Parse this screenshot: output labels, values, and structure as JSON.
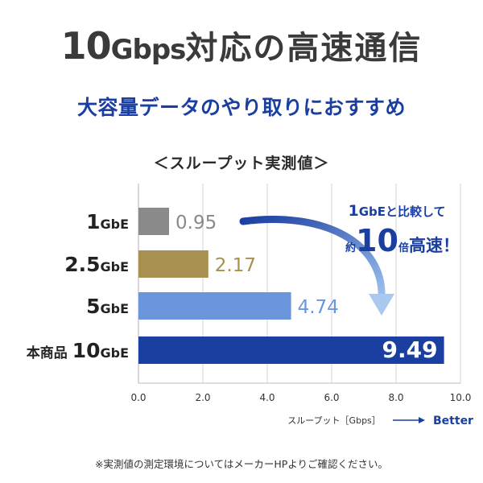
{
  "headline": {
    "num": "10",
    "unit": "Gbps",
    "text": "対応の高速通信"
  },
  "subtitle": "大容量データのやり取りにおすすめ",
  "chart_data": {
    "type": "bar",
    "orientation": "horizontal",
    "title": "＜スループット実測値＞",
    "categories": [
      {
        "prefix": "",
        "num": "1",
        "unit": "GbE"
      },
      {
        "prefix": "",
        "num": "2.5",
        "unit": "GbE"
      },
      {
        "prefix": "",
        "num": "5",
        "unit": "GbE"
      },
      {
        "prefix": "本商品",
        "num": "10",
        "unit": "GbE"
      }
    ],
    "values": [
      0.95,
      2.17,
      4.74,
      9.49
    ],
    "value_labels": [
      "0.95",
      "2.17",
      "4.74",
      "9.49"
    ],
    "colors": [
      "#8a8a8a",
      "#a89050",
      "#6b96db",
      "#1a3fa0"
    ],
    "xlim": [
      0,
      10
    ],
    "ticks": [
      "0.0",
      "2.0",
      "4.0",
      "6.0",
      "8.0",
      "10.0"
    ],
    "xlabel": "スループット［Gbps］",
    "better_label": "Better",
    "grid": true,
    "annotation": {
      "line1_num": "1",
      "line1_unit": "GbE",
      "line1_text": "と比較して",
      "line2_prefix": "約",
      "line2_num": "10",
      "line2_mid": "倍",
      "line2_text": "高速！"
    }
  },
  "note": "※実測値の測定環境についてはメーカーHPよりご確認ください。"
}
